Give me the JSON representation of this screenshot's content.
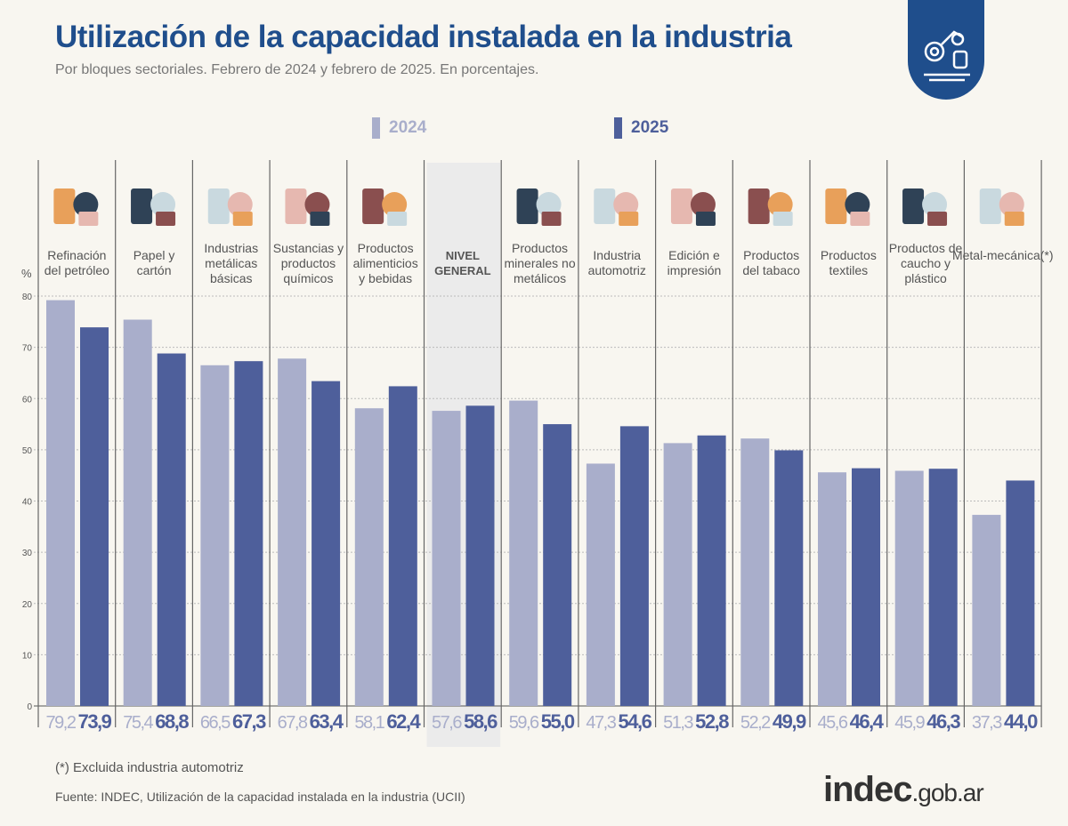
{
  "title": "Utilización de la capacidad instalada en la industria",
  "subtitle": "Por bloques sectoriales. Febrero de 2024 y febrero de 2025. En porcentajes.",
  "logo": {
    "icon": "industrial-robot-arm-icon",
    "color": "#1f4e8c"
  },
  "colors": {
    "2024": "#a9aecb",
    "2025": "#4e5f9b",
    "highlight": "#ebebeb",
    "title": "#1f4e8c"
  },
  "chart_data": {
    "type": "bar",
    "ylabel": "%",
    "ylim": [
      0,
      80
    ],
    "yticks": [
      "0",
      "10",
      "20",
      "30",
      "40",
      "50",
      "60",
      "70",
      "80"
    ],
    "grid": true,
    "legend_position": "top",
    "categories": [
      {
        "label": "Refinación del petróleo",
        "icon": "oil-refinery-icon"
      },
      {
        "label": "Papel y cartón",
        "icon": "cardboard-box-icon"
      },
      {
        "label": "Industrias metálicas básicas",
        "icon": "metal-cutting-saw-icon"
      },
      {
        "label": "Sustancias y productos químicos",
        "icon": "chemical-flask-icon"
      },
      {
        "label": "Productos alimenticios y bebidas",
        "icon": "bottle-bread-icon"
      },
      {
        "label": "NIVEL GENERAL",
        "icon": "",
        "highlight": true
      },
      {
        "label": "Productos minerales no metálicos",
        "icon": "cement-mixer-icon"
      },
      {
        "label": "Industria automotriz",
        "icon": "car-icon"
      },
      {
        "label": "Edición e impresión",
        "icon": "paper-rolls-icon"
      },
      {
        "label": "Productos del tabaco",
        "icon": "pipe-cigarette-icon"
      },
      {
        "label": "Productos textiles",
        "icon": "fabric-shorts-icon"
      },
      {
        "label": "Productos de caucho y plástico",
        "icon": "tire-icon"
      },
      {
        "label": "Metal-mecánica(*)",
        "icon": "gears-icon"
      }
    ],
    "series": [
      {
        "name": "2024",
        "values": [
          79.2,
          75.4,
          66.5,
          67.8,
          58.1,
          57.6,
          59.6,
          47.3,
          51.3,
          52.2,
          45.6,
          45.9,
          37.3
        ],
        "labels": [
          "79,2",
          "75,4",
          "66,5",
          "67,8",
          "58,1",
          "57,6",
          "59,6",
          "47,3",
          "51,3",
          "52,2",
          "45,6",
          "45,9",
          "37,3"
        ]
      },
      {
        "name": "2025",
        "values": [
          73.9,
          68.8,
          67.3,
          63.4,
          62.4,
          58.6,
          55.0,
          54.6,
          52.8,
          49.9,
          46.4,
          46.3,
          44.0
        ],
        "labels": [
          "73,9",
          "68,8",
          "67,3",
          "63,4",
          "62,4",
          "58,6",
          "55,0",
          "54,6",
          "52,8",
          "49,9",
          "46,4",
          "46,3",
          "44,0"
        ]
      }
    ]
  },
  "footnote": "(*) Excluida industria automotriz",
  "source": "Fuente: INDEC, Utilización de la capacidad instalada en la industria (UCII)",
  "brand": {
    "main": "indec",
    "suffix": ".gob.ar"
  }
}
